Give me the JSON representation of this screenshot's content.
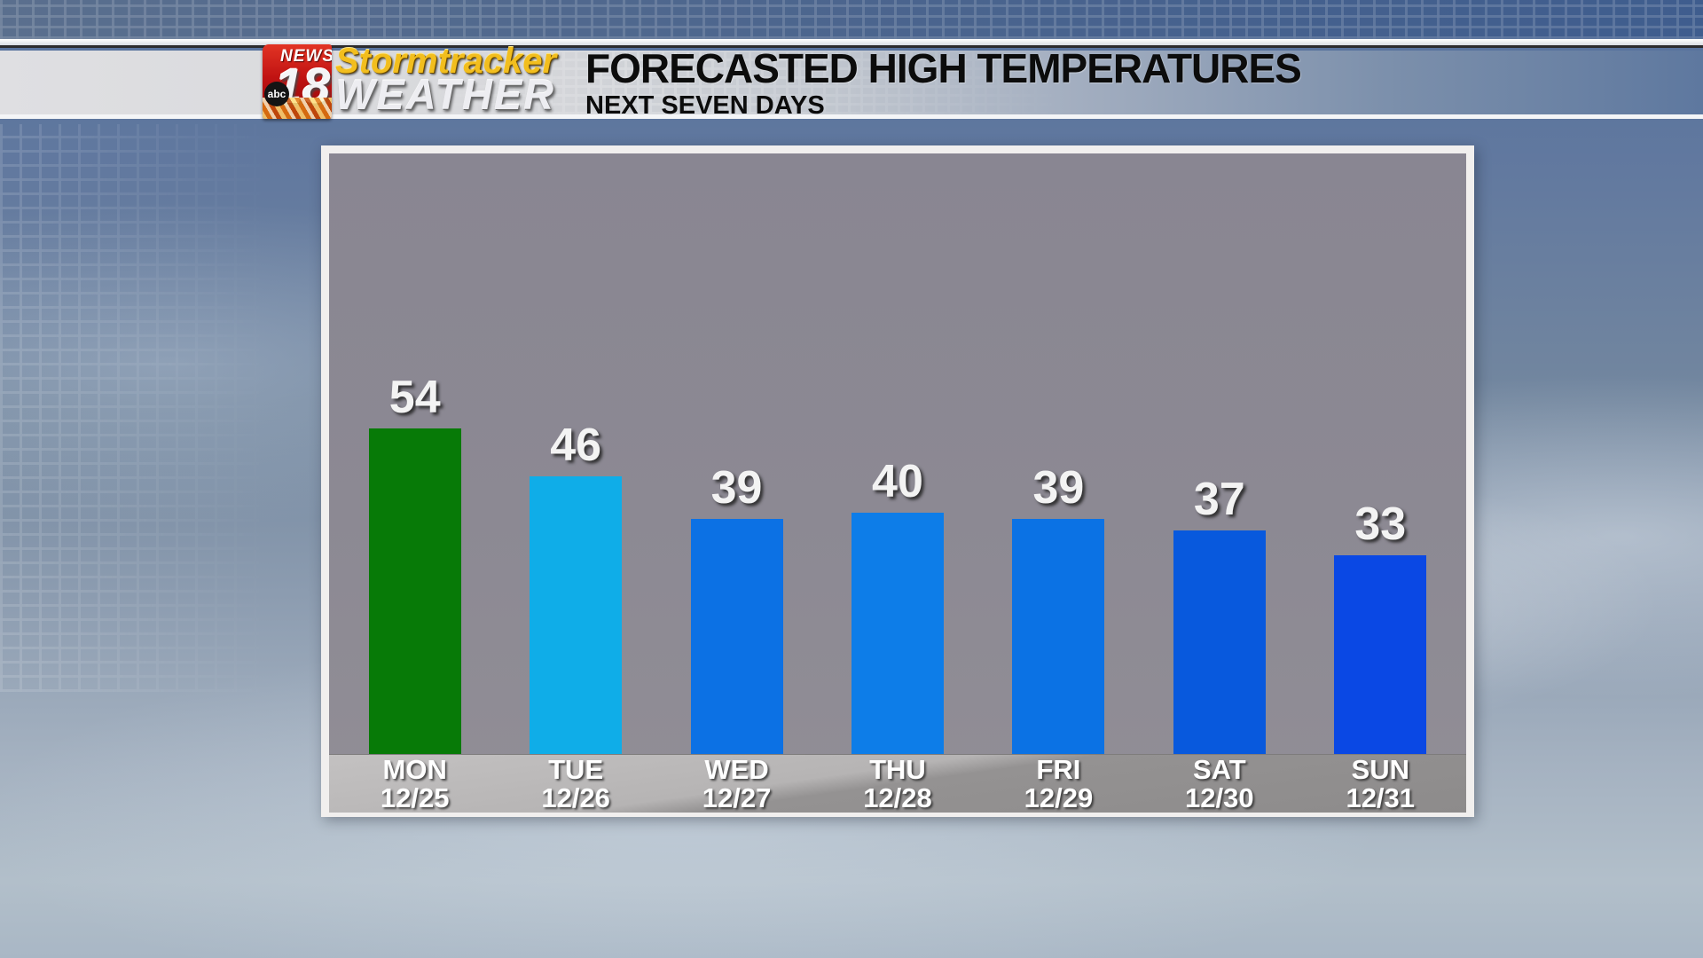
{
  "header": {
    "title": "FORECASTED HIGH TEMPERATURES",
    "subtitle": "NEXT SEVEN DAYS",
    "logo": {
      "station": "NEWS",
      "channel": "18",
      "network": "abc",
      "brand_line1": "Stormtracker",
      "brand_line2": "WEATHER",
      "brand_red": "#c01212",
      "brand_gold": "#f2be1e"
    }
  },
  "chart_data": {
    "type": "bar",
    "title": "FORECASTED HIGH TEMPERATURES",
    "subtitle": "NEXT SEVEN DAYS",
    "categories": [
      "MON",
      "TUE",
      "WED",
      "THU",
      "FRI",
      "SAT",
      "SUN"
    ],
    "dates": [
      "12/25",
      "12/26",
      "12/27",
      "12/28",
      "12/29",
      "12/30",
      "12/31"
    ],
    "values": [
      54,
      46,
      39,
      40,
      39,
      37,
      33
    ],
    "bar_colors": [
      "#077a07",
      "#0fade8",
      "#0c71e4",
      "#0d7de8",
      "#0b72e4",
      "#0859dd",
      "#0a48e4"
    ],
    "value_labels": true,
    "grid": false,
    "ylim": [
      0,
      100
    ],
    "legend": "none",
    "plot_background": "#8b8893"
  }
}
